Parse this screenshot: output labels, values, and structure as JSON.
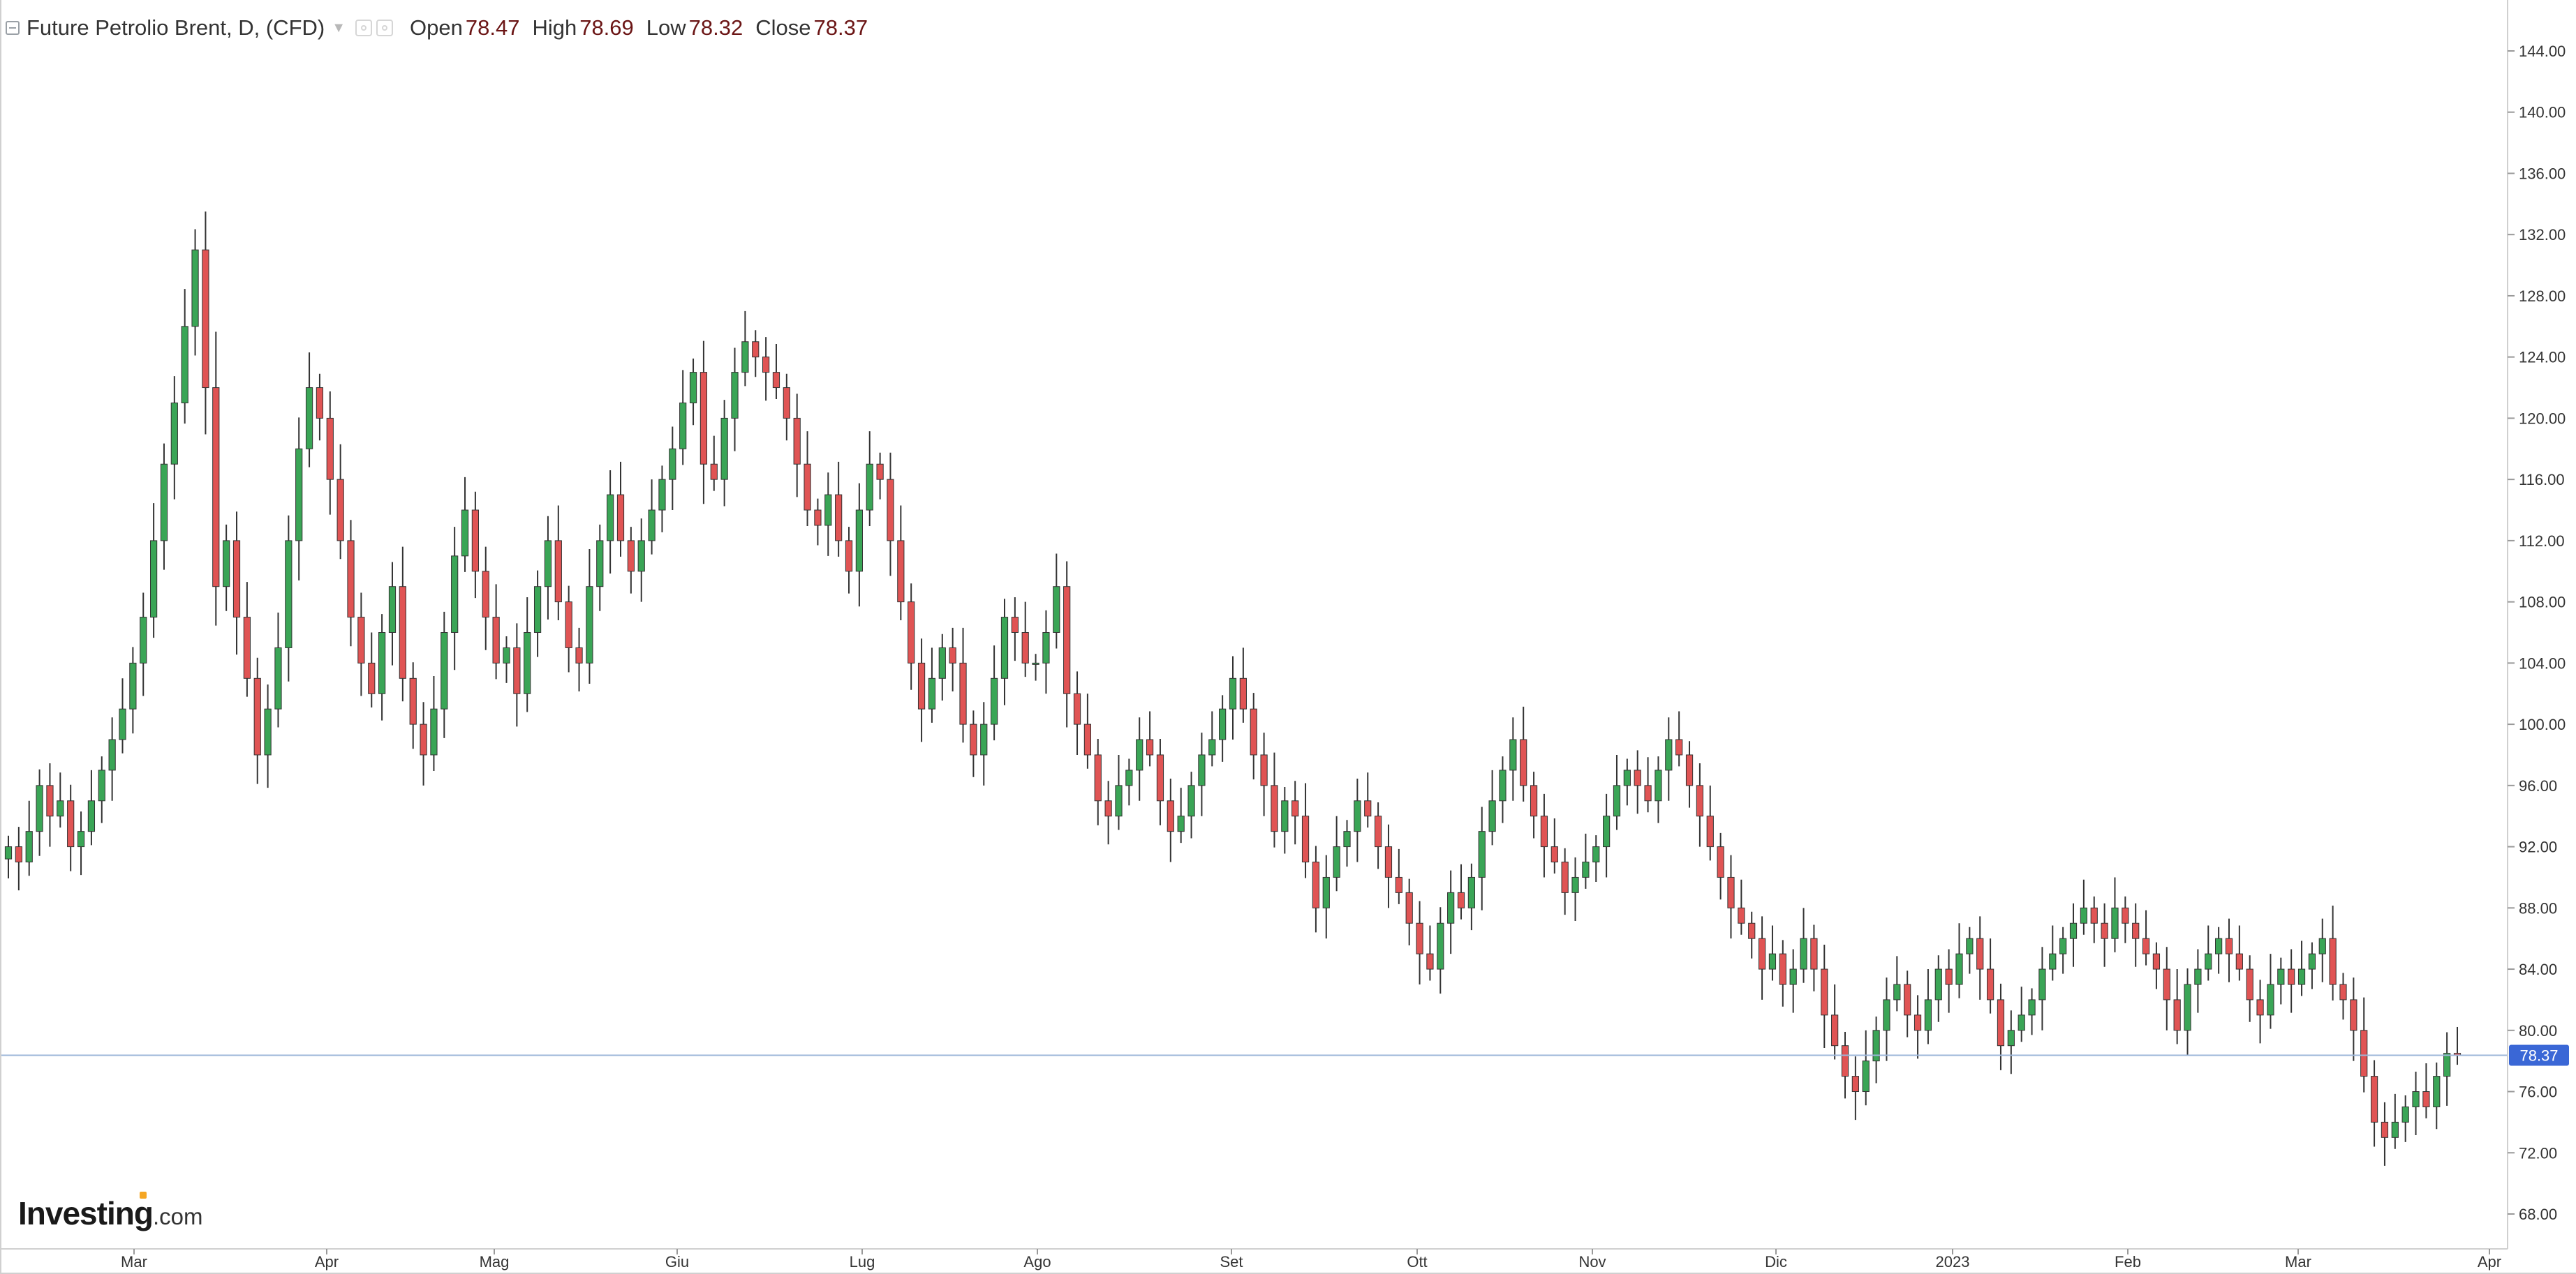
{
  "header": {
    "title": "Future Petrolio Brent, D, (CFD)",
    "open_label": "Open",
    "open_value": "78.47",
    "high_label": "High",
    "high_value": "78.69",
    "low_label": "Low",
    "low_value": "78.32",
    "close_label": "Close",
    "close_value": "78.37"
  },
  "logo": {
    "brand": "Investing",
    "domain": ".com"
  },
  "colors": {
    "up": "#3aa556",
    "down": "#e05454",
    "wick": "#333333",
    "price_line": "#9cb6d9",
    "price_badge": "#3a67d6",
    "grid_axis": "#d0d0d0"
  },
  "chart_data": {
    "type": "candlestick",
    "title": "Future Petrolio Brent, D, (CFD)",
    "last_price": 78.37,
    "last_price_label": "78.37",
    "ylim": [
      66,
      146
    ],
    "y_ticks": [
      "68.00",
      "72.00",
      "76.00",
      "80.00",
      "84.00",
      "88.00",
      "92.00",
      "96.00",
      "100.00",
      "104.00",
      "108.00",
      "112.00",
      "116.00",
      "120.00",
      "124.00",
      "128.00",
      "132.00",
      "136.00",
      "140.00",
      "144.00"
    ],
    "x_labels": [
      "Mar",
      "Apr",
      "Mag",
      "Giu",
      "Lug",
      "Ago",
      "Set",
      "Ott",
      "Nov",
      "Dic",
      "2023",
      "Feb",
      "Mar",
      "Apr"
    ],
    "closes": [
      92,
      91,
      93,
      96,
      94,
      95,
      92,
      93,
      95,
      97,
      99,
      101,
      104,
      107,
      112,
      117,
      121,
      126,
      131,
      122,
      109,
      112,
      107,
      103,
      98,
      101,
      105,
      112,
      118,
      122,
      120,
      116,
      112,
      107,
      104,
      102,
      106,
      109,
      103,
      100,
      98,
      101,
      106,
      111,
      114,
      110,
      107,
      104,
      105,
      102,
      106,
      109,
      112,
      108,
      105,
      104,
      109,
      112,
      115,
      112,
      110,
      112,
      114,
      116,
      118,
      121,
      123,
      117,
      116,
      120,
      123,
      125,
      124,
      123,
      122,
      120,
      117,
      114,
      113,
      115,
      112,
      110,
      114,
      117,
      116,
      112,
      108,
      104,
      101,
      103,
      105,
      104,
      100,
      98,
      100,
      103,
      107,
      106,
      104,
      104,
      106,
      109,
      102,
      100,
      98,
      95,
      94,
      96,
      97,
      99,
      98,
      95,
      93,
      94,
      96,
      98,
      99,
      101,
      103,
      101,
      98,
      96,
      93,
      95,
      94,
      91,
      88,
      90,
      92,
      93,
      95,
      94,
      92,
      90,
      89,
      87,
      85,
      84,
      87,
      89,
      88,
      90,
      93,
      95,
      97,
      99,
      96,
      94,
      92,
      91,
      89,
      90,
      91,
      92,
      94,
      96,
      97,
      96,
      95,
      97,
      99,
      98,
      96,
      94,
      92,
      90,
      88,
      87,
      86,
      84,
      85,
      83,
      84,
      86,
      84,
      81,
      79,
      77,
      76,
      78,
      80,
      82,
      83,
      81,
      80,
      82,
      84,
      83,
      85,
      86,
      84,
      82,
      79,
      80,
      81,
      82,
      84,
      85,
      86,
      87,
      88,
      87,
      86,
      88,
      87,
      86,
      85,
      84,
      82,
      80,
      83,
      84,
      85,
      86,
      85,
      84,
      82,
      81,
      83,
      84,
      83,
      84,
      85,
      86,
      83,
      82,
      80,
      77,
      74,
      73,
      74,
      75,
      76,
      75,
      77,
      78.5,
      78.37
    ]
  }
}
